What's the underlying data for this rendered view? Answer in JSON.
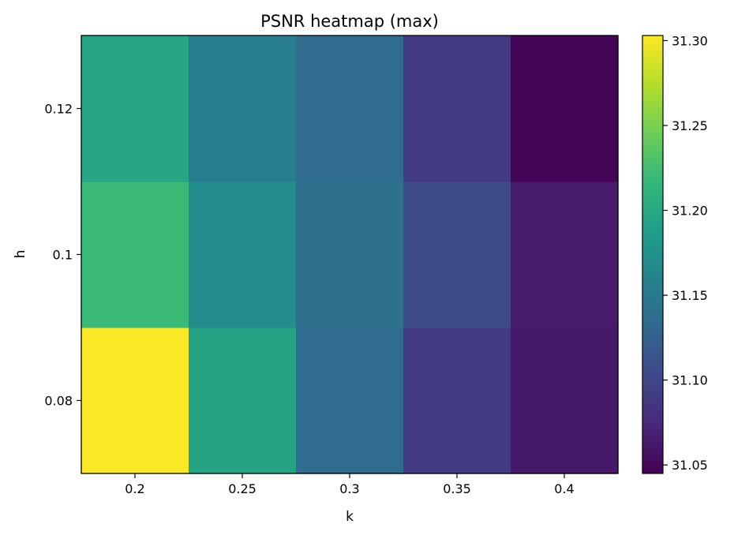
{
  "chart_data": {
    "type": "heatmap",
    "title": "PSNR heatmap (max)",
    "xlabel": "k",
    "ylabel": "h",
    "x_categories": [
      "0.2",
      "0.25",
      "0.3",
      "0.35",
      "0.4"
    ],
    "y_categories": [
      "0.08",
      "0.1",
      "0.12"
    ],
    "values": [
      [
        31.302,
        31.195,
        31.135,
        31.09,
        31.062
      ],
      [
        31.22,
        31.17,
        31.14,
        31.105,
        31.065
      ],
      [
        31.197,
        31.155,
        31.135,
        31.09,
        31.048
      ]
    ],
    "colorbar": {
      "vmin": 31.045,
      "vmax": 31.303,
      "ticks": [
        "31.05",
        "31.10",
        "31.15",
        "31.20",
        "31.25",
        "31.30"
      ],
      "colormap": "viridis"
    },
    "colormap_stops": [
      "#440154",
      "#482878",
      "#3e4989",
      "#31688e",
      "#26828e",
      "#1f9e89",
      "#35b779",
      "#6ece58",
      "#b5de2b",
      "#fde725"
    ],
    "grid": false
  }
}
